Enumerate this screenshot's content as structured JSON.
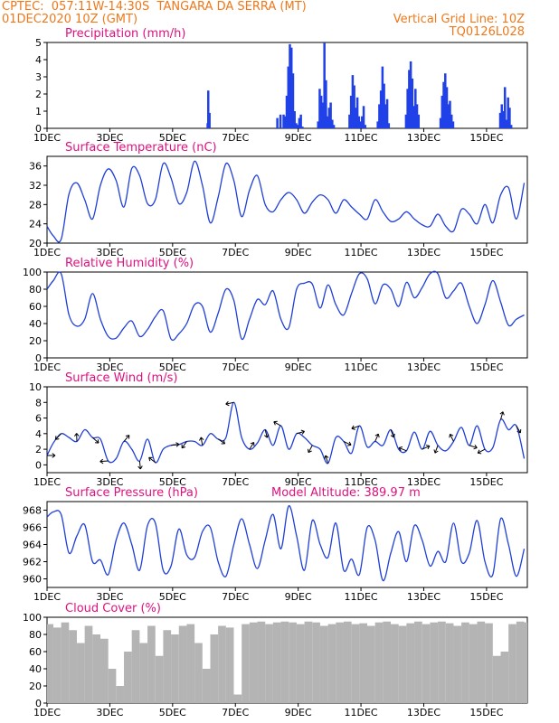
{
  "header": {
    "line1": "CPTEC:  057:11W-14:30S  TANGARA DA SERRA (MT)",
    "line2_left": "01DEC2020 10Z (GMT)",
    "line2_right": "Vertical Grid Line: 10Z",
    "line3_right": "TQ0126L028"
  },
  "colors": {
    "line": "#1f3fd8",
    "bars": "#2040e8",
    "cloud": "#b4b4b4",
    "title": "#e0107f",
    "header": "#f07818"
  },
  "chart_data": [
    {
      "type": "bar",
      "title": "Precipitation (mm/h)",
      "xlabel": "",
      "ylabel": "",
      "ylim": [
        0,
        5
      ],
      "yticks": [
        0,
        1,
        2,
        3,
        4,
        5
      ],
      "xticks": [
        1,
        3,
        5,
        7,
        9,
        11,
        13,
        15
      ],
      "xtick_labels": [
        "1DEC",
        "3DEC",
        "5DEC",
        "7DEC",
        "9DEC",
        "11DEC",
        "13DEC",
        "15DEC"
      ],
      "xlim": [
        1,
        16.3
      ],
      "x": [
        6.08,
        6.1,
        6.14,
        8.3,
        8.4,
        8.5,
        8.55,
        8.6,
        8.65,
        8.7,
        8.75,
        8.8,
        8.85,
        8.9,
        8.95,
        9.0,
        9.05,
        9.1,
        9.6,
        9.65,
        9.7,
        9.75,
        9.8,
        9.85,
        9.9,
        9.95,
        10.0,
        10.05,
        10.1,
        10.6,
        10.65,
        10.7,
        10.75,
        10.8,
        10.85,
        10.9,
        10.95,
        11.0,
        11.05,
        11.1,
        11.5,
        11.55,
        11.6,
        11.65,
        11.7,
        11.75,
        11.8,
        11.85,
        12.4,
        12.45,
        12.5,
        12.55,
        12.6,
        12.65,
        12.7,
        12.75,
        12.8,
        13.5,
        13.55,
        13.6,
        13.65,
        13.7,
        13.75,
        13.8,
        13.85,
        13.9,
        15.4,
        15.45,
        15.5,
        15.55,
        15.6,
        15.65,
        15.7,
        15.75
      ],
      "values": [
        0.3,
        2.2,
        0.9,
        0.6,
        0.8,
        0.8,
        0.7,
        1.9,
        3.6,
        4.9,
        4.7,
        3.2,
        1.0,
        0.3,
        0.2,
        0.6,
        0.8,
        0.1,
        0.4,
        2.3,
        1.9,
        1.5,
        5.0,
        2.8,
        0.7,
        1.2,
        1.5,
        0.5,
        0.2,
        0.8,
        1.9,
        3.1,
        2.5,
        1.2,
        1.8,
        0.7,
        0.4,
        0.7,
        1.3,
        0.2,
        0.4,
        1.4,
        2.2,
        3.6,
        2.6,
        1.4,
        1.7,
        0.3,
        0.8,
        2.3,
        3.4,
        3.9,
        2.9,
        1.3,
        2.3,
        1.4,
        0.8,
        0.6,
        1.9,
        2.7,
        3.2,
        2.4,
        1.4,
        1.6,
        0.8,
        0.4,
        0.9,
        1.4,
        1.0,
        2.4,
        0.5,
        1.8,
        1.2,
        0.2
      ]
    },
    {
      "type": "line",
      "title": "Surface Temperature (nC)",
      "xlabel": "",
      "ylabel": "",
      "ylim": [
        20,
        38
      ],
      "yticks": [
        20,
        24,
        28,
        32,
        36
      ],
      "xticks": [
        1,
        3,
        5,
        7,
        9,
        11,
        13,
        15
      ],
      "xtick_labels": [
        "1DEC",
        "3DEC",
        "5DEC",
        "7DEC",
        "9DEC",
        "11DEC",
        "13DEC",
        "15DEC"
      ],
      "xlim": [
        1,
        16.3
      ],
      "x": [
        1.0,
        1.2,
        1.45,
        1.7,
        1.95,
        2.2,
        2.45,
        2.7,
        2.95,
        3.2,
        3.45,
        3.7,
        3.95,
        4.2,
        4.45,
        4.7,
        4.95,
        5.2,
        5.45,
        5.7,
        5.95,
        6.2,
        6.45,
        6.7,
        6.95,
        7.2,
        7.45,
        7.7,
        7.95,
        8.2,
        8.45,
        8.7,
        8.95,
        9.2,
        9.45,
        9.7,
        9.95,
        10.2,
        10.45,
        10.7,
        10.95,
        11.2,
        11.45,
        11.7,
        11.95,
        12.2,
        12.45,
        12.7,
        12.95,
        13.2,
        13.45,
        13.7,
        13.95,
        14.2,
        14.45,
        14.7,
        14.95,
        15.2,
        15.45,
        15.7,
        15.95,
        16.2
      ],
      "values": [
        23.5,
        21.5,
        20.8,
        30.2,
        32.5,
        29.0,
        25.0,
        32.0,
        35.4,
        33.0,
        27.5,
        35.5,
        34.0,
        28.2,
        29.0,
        36.5,
        33.5,
        28.2,
        30.5,
        37.0,
        32.0,
        24.2,
        29.5,
        36.5,
        33.0,
        25.5,
        31.0,
        34.0,
        28.0,
        26.5,
        29.0,
        30.5,
        29.0,
        26.2,
        28.5,
        30.0,
        29.0,
        26.2,
        29.0,
        27.5,
        26.0,
        25.0,
        29.0,
        26.5,
        24.5,
        25.0,
        26.5,
        25.0,
        23.8,
        23.5,
        26.0,
        23.5,
        22.5,
        27.0,
        26.0,
        24.0,
        28.0,
        24.2,
        30.0,
        31.5,
        25.0,
        32.5
      ]
    },
    {
      "type": "line",
      "title": "Relative Humidity (%)",
      "xlabel": "",
      "ylabel": "",
      "ylim": [
        0,
        100
      ],
      "yticks": [
        0,
        20,
        40,
        60,
        80,
        100
      ],
      "xticks": [
        1,
        3,
        5,
        7,
        9,
        11,
        13,
        15
      ],
      "xtick_labels": [
        "1DEC",
        "3DEC",
        "5DEC",
        "7DEC",
        "9DEC",
        "11DEC",
        "13DEC",
        "15DEC"
      ],
      "xlim": [
        1,
        16.3
      ],
      "x": [
        1.0,
        1.2,
        1.45,
        1.7,
        1.95,
        2.2,
        2.45,
        2.7,
        2.95,
        3.2,
        3.45,
        3.7,
        3.95,
        4.2,
        4.45,
        4.7,
        4.95,
        5.2,
        5.45,
        5.7,
        5.95,
        6.2,
        6.45,
        6.7,
        6.95,
        7.2,
        7.45,
        7.7,
        7.95,
        8.2,
        8.45,
        8.7,
        8.95,
        9.2,
        9.45,
        9.7,
        9.95,
        10.2,
        10.45,
        10.7,
        10.95,
        11.2,
        11.45,
        11.7,
        11.95,
        12.2,
        12.45,
        12.7,
        12.95,
        13.2,
        13.45,
        13.7,
        13.95,
        14.2,
        14.45,
        14.7,
        14.95,
        15.2,
        15.45,
        15.7,
        15.95,
        16.2
      ],
      "values": [
        80,
        90,
        98,
        50,
        37,
        45,
        75,
        45,
        25,
        23,
        35,
        43,
        25,
        33,
        48,
        55,
        22,
        28,
        40,
        62,
        60,
        30,
        52,
        80,
        67,
        22,
        45,
        68,
        62,
        78,
        45,
        35,
        80,
        87,
        86,
        58,
        85,
        62,
        50,
        75,
        98,
        92,
        63,
        85,
        80,
        60,
        88,
        70,
        82,
        98,
        98,
        70,
        78,
        87,
        60,
        40,
        62,
        90,
        65,
        38,
        45,
        50
      ]
    },
    {
      "type": "line",
      "title": "Surface Wind (m/s)",
      "xlabel": "",
      "ylabel": "",
      "ylim": [
        -1,
        10
      ],
      "yticks": [
        0,
        2,
        4,
        6,
        8,
        10
      ],
      "xticks": [
        1,
        3,
        5,
        7,
        9,
        11,
        13,
        15
      ],
      "xtick_labels": [
        "1DEC",
        "3DEC",
        "5DEC",
        "7DEC",
        "9DEC",
        "11DEC",
        "13DEC",
        "15DEC"
      ],
      "xlim": [
        1,
        16.3
      ],
      "x": [
        1.0,
        1.2,
        1.45,
        1.7,
        1.95,
        2.2,
        2.45,
        2.7,
        2.95,
        3.2,
        3.45,
        3.7,
        3.95,
        4.2,
        4.45,
        4.7,
        4.95,
        5.2,
        5.45,
        5.7,
        5.95,
        6.2,
        6.45,
        6.7,
        6.95,
        7.2,
        7.45,
        7.7,
        7.95,
        8.2,
        8.45,
        8.7,
        8.95,
        9.2,
        9.45,
        9.7,
        9.95,
        10.2,
        10.45,
        10.7,
        10.95,
        11.2,
        11.45,
        11.7,
        11.95,
        12.2,
        12.45,
        12.7,
        12.95,
        13.2,
        13.45,
        13.7,
        13.95,
        14.2,
        14.45,
        14.7,
        14.95,
        15.2,
        15.45,
        15.7,
        15.95,
        16.2
      ],
      "values": [
        1.2,
        2.8,
        4.0,
        3.5,
        3.0,
        4.5,
        3.5,
        3.3,
        0.5,
        0.8,
        3.0,
        2.0,
        0.5,
        3.3,
        0.3,
        2.0,
        2.5,
        2.6,
        3.0,
        3.0,
        2.5,
        4.0,
        3.3,
        3.5,
        8.0,
        3.5,
        2.0,
        2.8,
        4.5,
        2.5,
        5.0,
        2.0,
        4.0,
        3.5,
        2.5,
        2.0,
        0.2,
        3.5,
        3.0,
        1.5,
        5.0,
        2.3,
        3.0,
        2.5,
        4.5,
        2.0,
        1.8,
        4.2,
        2.0,
        4.3,
        2.5,
        1.8,
        3.0,
        4.8,
        2.5,
        5.0,
        2.0,
        2.2,
        5.8,
        4.5,
        5.0,
        0.8
      ]
    },
    {
      "type": "line",
      "title": "Surface Pressure (hPa)",
      "subtitle": "Model Altitude: 389.97 m",
      "xlabel": "",
      "ylabel": "",
      "ylim": [
        959,
        969
      ],
      "yticks": [
        960,
        962,
        964,
        966,
        968
      ],
      "xticks": [
        1,
        3,
        5,
        7,
        9,
        11,
        13,
        15
      ],
      "xtick_labels": [
        "1DEC",
        "3DEC",
        "5DEC",
        "7DEC",
        "9DEC",
        "11DEC",
        "13DEC",
        "15DEC"
      ],
      "xlim": [
        1,
        16.3
      ],
      "x": [
        1.0,
        1.2,
        1.45,
        1.7,
        1.95,
        2.2,
        2.45,
        2.7,
        2.95,
        3.2,
        3.45,
        3.7,
        3.95,
        4.2,
        4.45,
        4.7,
        4.95,
        5.2,
        5.45,
        5.7,
        5.95,
        6.2,
        6.45,
        6.7,
        6.95,
        7.2,
        7.45,
        7.7,
        7.95,
        8.2,
        8.45,
        8.7,
        8.95,
        9.2,
        9.45,
        9.7,
        9.95,
        10.2,
        10.45,
        10.7,
        10.95,
        11.2,
        11.45,
        11.7,
        11.95,
        12.2,
        12.45,
        12.7,
        12.95,
        13.2,
        13.45,
        13.7,
        13.95,
        14.2,
        14.45,
        14.7,
        14.95,
        15.2,
        15.45,
        15.7,
        15.95,
        16.2
      ],
      "values": [
        967.2,
        967.8,
        967.5,
        963.0,
        965.0,
        966.3,
        962.0,
        962.2,
        960.5,
        964.5,
        966.5,
        964.0,
        961.0,
        966.2,
        966.5,
        961.0,
        961.5,
        965.8,
        962.8,
        962.5,
        965.5,
        966.0,
        962.0,
        960.3,
        964.0,
        967.0,
        964.0,
        961.2,
        964.5,
        967.5,
        963.5,
        968.5,
        965.0,
        961.0,
        966.8,
        964.0,
        962.5,
        966.5,
        961.0,
        962.3,
        960.5,
        966.0,
        964.5,
        959.8,
        963.0,
        965.5,
        962.0,
        966.2,
        964.5,
        961.5,
        963.2,
        962.0,
        966.5,
        962.0,
        963.0,
        966.8,
        962.0,
        960.5,
        967.0,
        964.0,
        960.3,
        963.5
      ]
    },
    {
      "type": "bar",
      "title": "Cloud Cover (%)",
      "xlabel": "",
      "ylabel": "",
      "ylim": [
        0,
        100
      ],
      "yticks": [
        0,
        20,
        40,
        60,
        80,
        100
      ],
      "xticks": [
        1,
        3,
        5,
        7,
        9,
        11,
        13,
        15
      ],
      "xtick_labels": [
        "1DEC",
        "3DEC",
        "5DEC",
        "7DEC",
        "9DEC",
        "11DEC",
        "13DEC",
        "15DEC"
      ],
      "xlim": [
        1,
        16.3
      ],
      "x": [
        1.0,
        1.2,
        1.45,
        1.7,
        1.95,
        2.2,
        2.45,
        2.7,
        2.95,
        3.2,
        3.45,
        3.7,
        3.95,
        4.2,
        4.45,
        4.7,
        4.95,
        5.2,
        5.45,
        5.7,
        5.95,
        6.2,
        6.45,
        6.7,
        6.95,
        7.2,
        7.45,
        7.7,
        7.95,
        8.2,
        8.45,
        8.7,
        8.95,
        9.2,
        9.45,
        9.7,
        9.95,
        10.2,
        10.45,
        10.7,
        10.95,
        11.2,
        11.45,
        11.7,
        11.95,
        12.2,
        12.45,
        12.7,
        12.95,
        13.2,
        13.45,
        13.7,
        13.95,
        14.2,
        14.45,
        14.7,
        14.95,
        15.2,
        15.45,
        15.7,
        15.95,
        16.2
      ],
      "values": [
        92,
        88,
        94,
        85,
        70,
        90,
        80,
        75,
        40,
        20,
        60,
        85,
        70,
        90,
        55,
        85,
        80,
        90,
        92,
        70,
        40,
        80,
        90,
        88,
        10,
        92,
        94,
        95,
        92,
        94,
        95,
        94,
        92,
        95,
        94,
        90,
        92,
        94,
        95,
        92,
        93,
        90,
        94,
        95,
        92,
        90,
        93,
        95,
        92,
        94,
        95,
        93,
        90,
        94,
        92,
        95,
        93,
        55,
        60,
        92,
        95,
        94
      ]
    }
  ]
}
